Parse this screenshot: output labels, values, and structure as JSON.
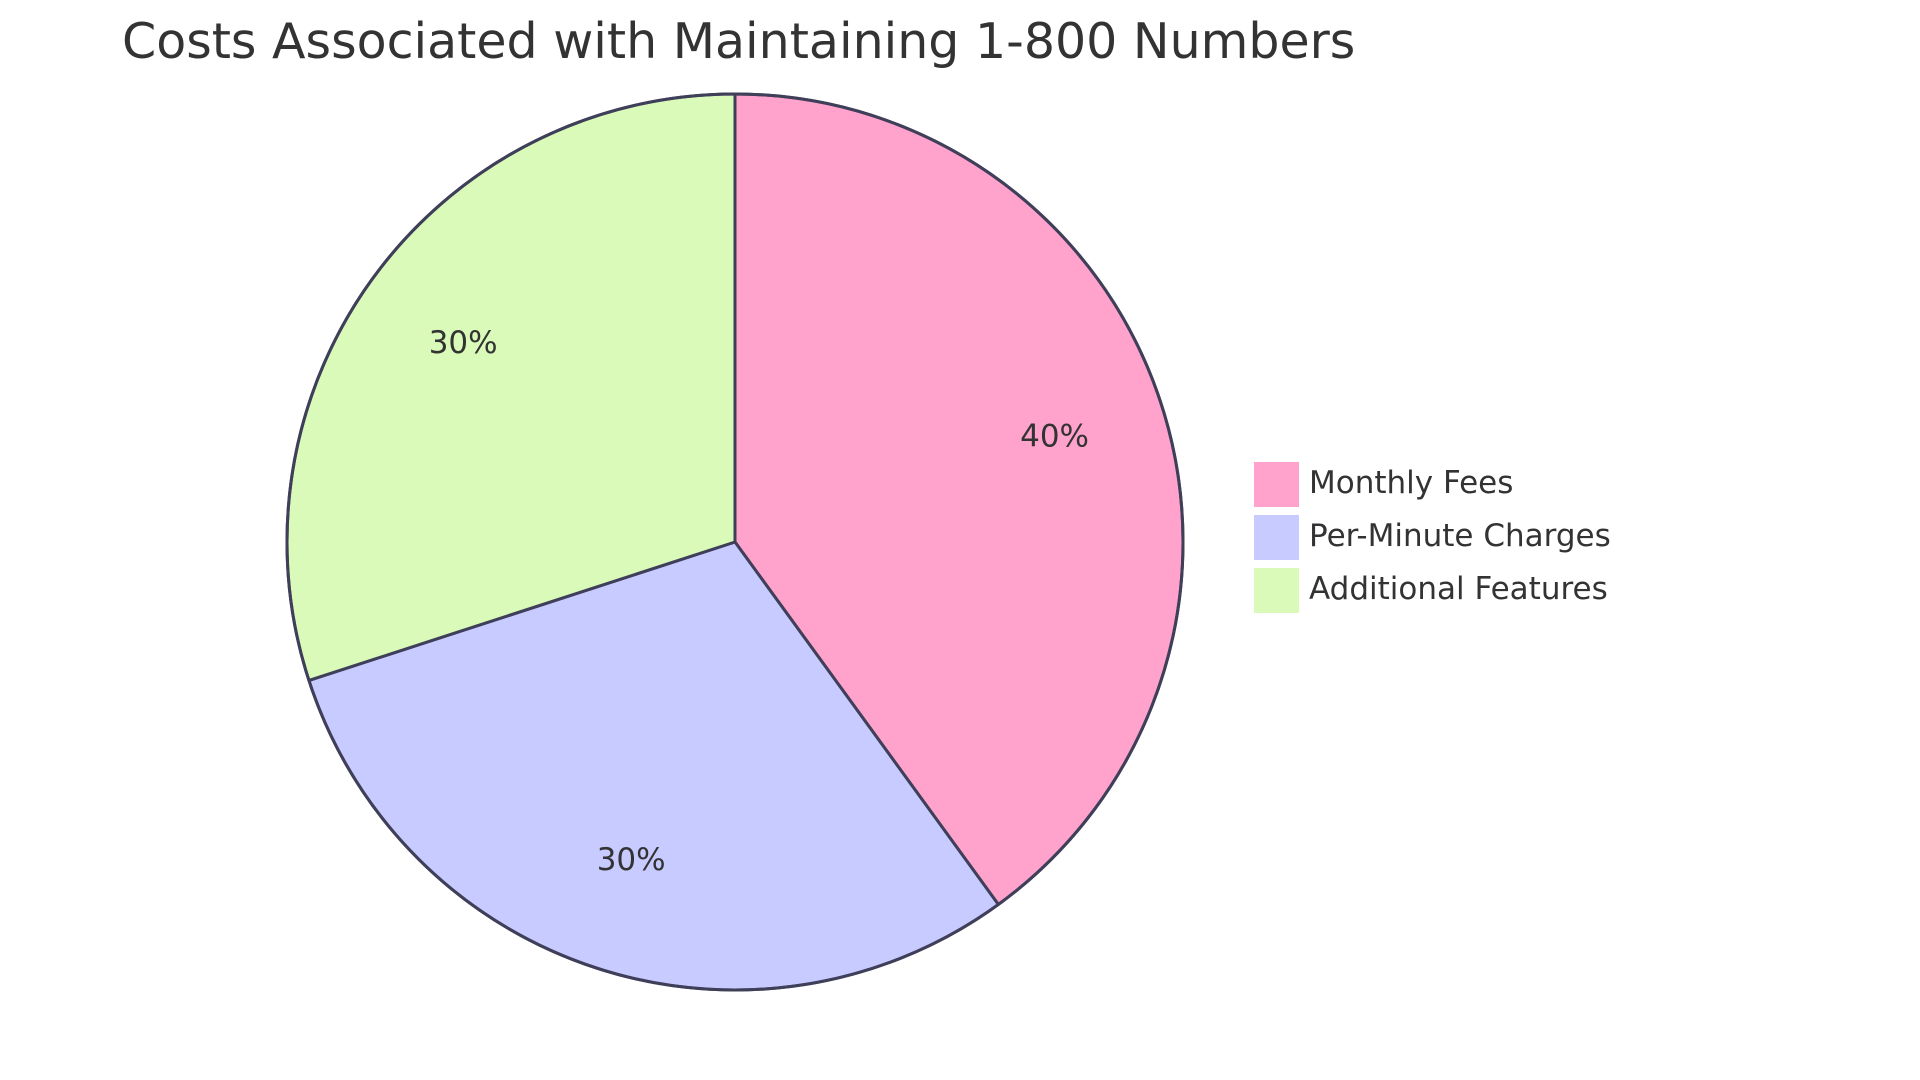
{
  "chart_data": {
    "type": "pie",
    "title": "Costs Associated with Maintaining 1-800 Numbers",
    "start_angle_deg": 0,
    "direction": "clockwise",
    "legend_position": "right",
    "slices": [
      {
        "label": "Monthly Fees",
        "value": 40,
        "display": "40%",
        "color": "#FFA3CD"
      },
      {
        "label": "Per-Minute Charges",
        "value": 30,
        "display": "30%",
        "color": "#C8CBFF"
      },
      {
        "label": "Additional Features",
        "value": 30,
        "display": "30%",
        "color": "#DAFABA"
      }
    ],
    "stroke_color": "#3F3F5A",
    "text_color": "#333333"
  }
}
